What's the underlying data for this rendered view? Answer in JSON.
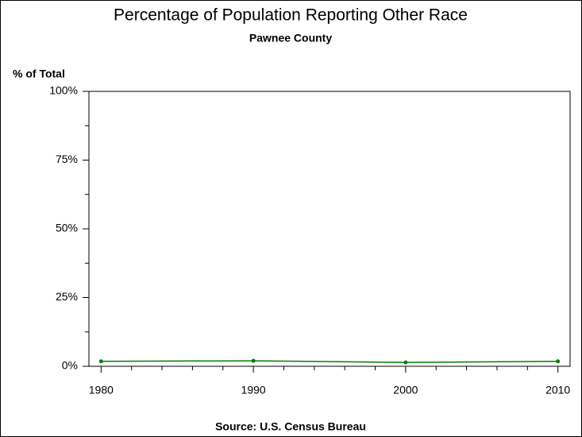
{
  "chart_data": {
    "type": "line",
    "title": "Percentage of Population Reporting Other Race",
    "subtitle": "Pawnee County",
    "y_label": "% of Total",
    "source": "Source: U.S. Census Bureau",
    "x": [
      1980,
      1990,
      2000,
      2010
    ],
    "series": [
      {
        "color": "#008000",
        "values": [
          1.8,
          2.0,
          1.4,
          1.8
        ]
      }
    ],
    "xlim": [
      1979.2,
      2010.8
    ],
    "xticks": [
      1980,
      1990,
      2000,
      2010
    ],
    "xminorticks": [
      1982,
      1984,
      1986,
      1988,
      1992,
      1994,
      1996,
      1998,
      2002,
      2004,
      2006,
      2008
    ],
    "ylim": [
      0,
      100
    ],
    "yticks": [
      {
        "value": 0,
        "label": "0%"
      },
      {
        "value": 25,
        "label": "25%"
      },
      {
        "value": 50,
        "label": "50%"
      },
      {
        "value": 75,
        "label": "75%"
      },
      {
        "value": 100,
        "label": "100%"
      }
    ],
    "yminorticks": [
      12.5,
      37.5,
      62.5,
      87.5
    ]
  }
}
